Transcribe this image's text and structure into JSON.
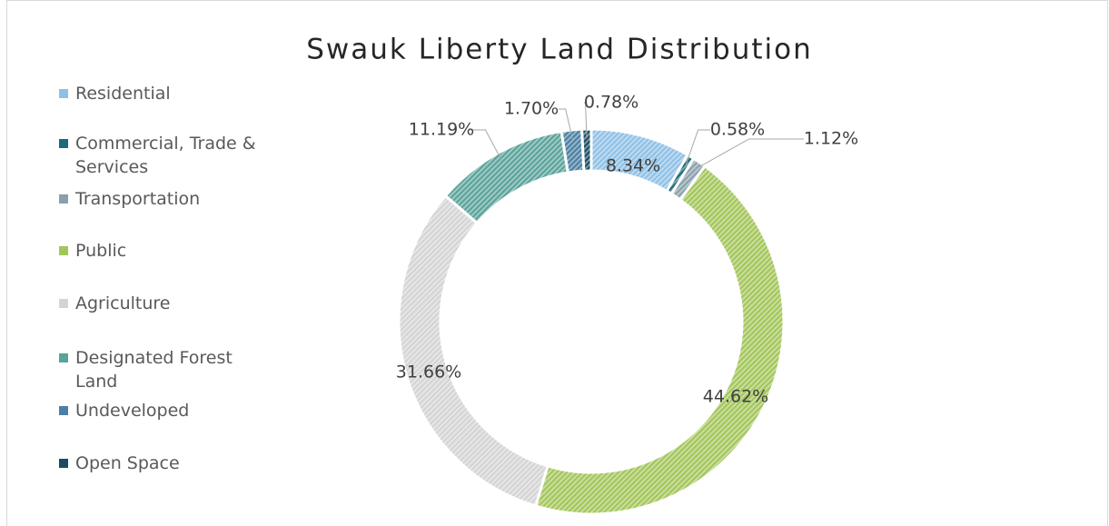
{
  "chart_data": {
    "type": "donut",
    "title": "Swauk Liberty Land Distribution",
    "categories": [
      "Residential",
      "Commercial, Trade & Services",
      "Transportation",
      "Public",
      "Agriculture",
      "Designated Forest Land",
      "Undeveloped",
      "Open Space"
    ],
    "values": [
      8.34,
      0.58,
      1.12,
      44.62,
      31.66,
      11.19,
      1.7,
      0.78
    ],
    "value_labels": [
      "8.34%",
      "0.58%",
      "1.12%",
      "44.62%",
      "31.66%",
      "11.19%",
      "1.70%",
      "0.78%"
    ],
    "colors": [
      "#8fc1e6",
      "#1d6a7a",
      "#8aa0ab",
      "#a3c65a",
      "#d4d4d4",
      "#5aa39a",
      "#4a80a3",
      "#1b4c62"
    ],
    "legend": "left"
  }
}
